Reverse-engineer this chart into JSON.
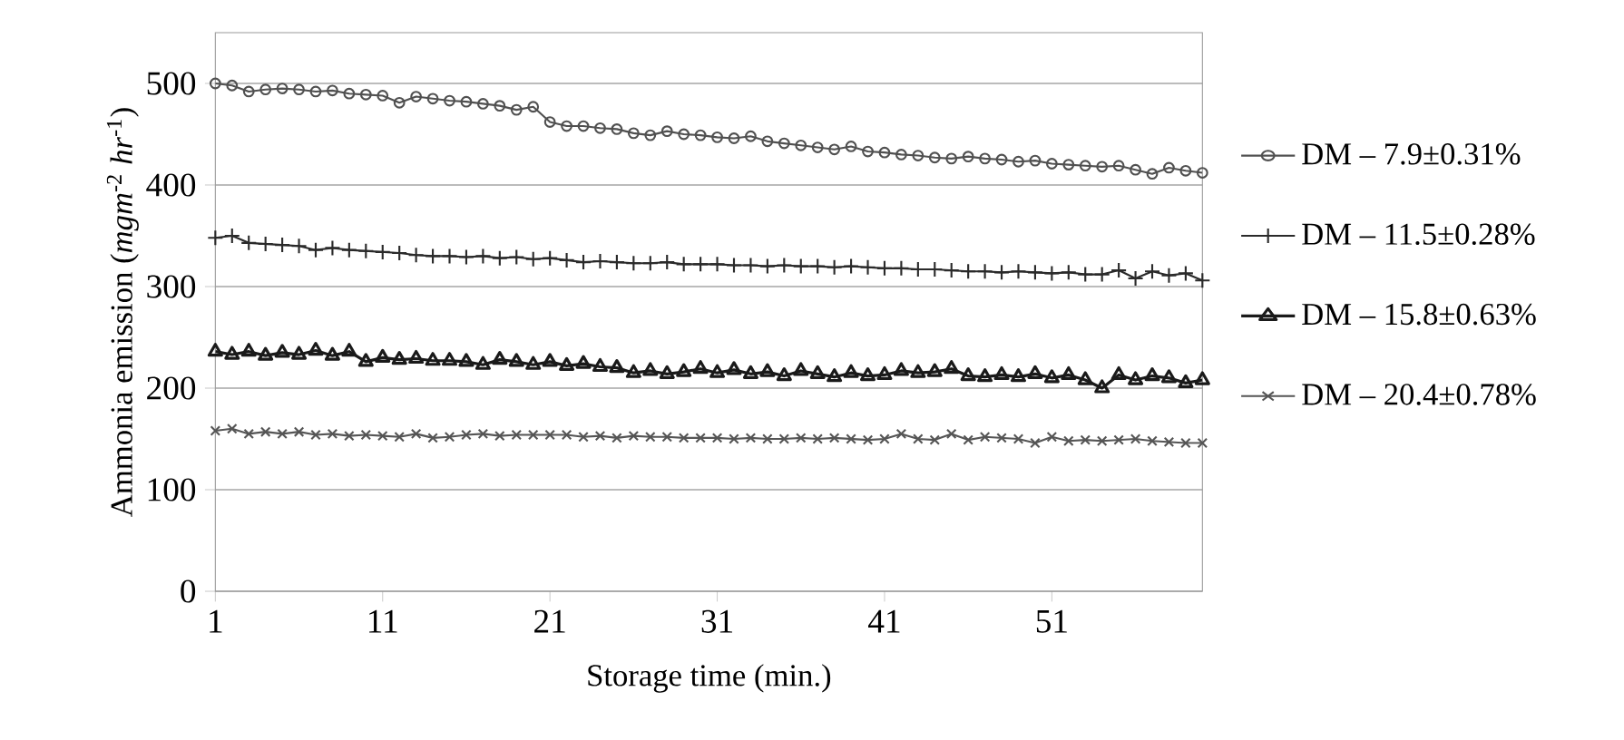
{
  "chart_data": {
    "type": "line",
    "xlabel": "Storage time (min.)",
    "ylabel": "Ammonia emission (*mgm*$^{-2}$ *hr*$^{-1}$)",
    "x": [
      1,
      2,
      3,
      4,
      5,
      6,
      7,
      8,
      9,
      10,
      11,
      12,
      13,
      14,
      15,
      16,
      17,
      18,
      19,
      20,
      21,
      22,
      23,
      24,
      25,
      26,
      27,
      28,
      29,
      30,
      31,
      32,
      33,
      34,
      35,
      36,
      37,
      38,
      39,
      40,
      41,
      42,
      43,
      44,
      45,
      46,
      47,
      48,
      49,
      50,
      51,
      52,
      53,
      54,
      55,
      56,
      57,
      58,
      59,
      60
    ],
    "xlim": [
      1,
      60
    ],
    "xticks": [
      1,
      11,
      21,
      31,
      41,
      51
    ],
    "ylim": [
      0,
      550
    ],
    "yticks": [
      0,
      100,
      200,
      300,
      400,
      500
    ],
    "grid": "y",
    "legend": "right",
    "series": [
      {
        "name": "DM – 7.9±0.31%",
        "color": "#505050",
        "marker": "circle",
        "values": [
          500,
          498,
          492,
          494,
          495,
          494,
          492,
          493,
          490,
          489,
          488,
          481,
          487,
          485,
          483,
          482,
          480,
          478,
          474,
          477,
          462,
          458,
          458,
          456,
          455,
          451,
          449,
          453,
          450,
          449,
          447,
          446,
          448,
          443,
          441,
          439,
          437,
          435,
          438,
          433,
          432,
          430,
          429,
          427,
          426,
          428,
          426,
          425,
          423,
          424,
          421,
          420,
          419,
          418,
          419,
          415,
          411,
          417,
          414,
          412
        ]
      },
      {
        "name": "DM – 11.5±0.28%",
        "color": "#2a2a2a",
        "marker": "plus",
        "values": [
          348,
          350,
          343,
          342,
          341,
          340,
          336,
          338,
          336,
          335,
          334,
          333,
          331,
          330,
          330,
          329,
          330,
          328,
          329,
          327,
          328,
          326,
          324,
          325,
          324,
          323,
          323,
          324,
          322,
          322,
          322,
          321,
          321,
          320,
          321,
          320,
          320,
          319,
          320,
          319,
          318,
          318,
          317,
          317,
          316,
          315,
          315,
          314,
          315,
          314,
          313,
          314,
          312,
          312,
          316,
          308,
          315,
          311,
          313,
          306
        ]
      },
      {
        "name": "DM – 15.8±0.63%",
        "color": "#1a1a1a",
        "marker": "triangle",
        "values": [
          236,
          233,
          236,
          232,
          235,
          233,
          237,
          232,
          236,
          226,
          230,
          228,
          229,
          227,
          227,
          226,
          223,
          228,
          226,
          223,
          226,
          222,
          224,
          221,
          220,
          215,
          217,
          214,
          216,
          219,
          215,
          218,
          214,
          216,
          212,
          217,
          214,
          211,
          215,
          212,
          213,
          217,
          215,
          216,
          219,
          212,
          211,
          213,
          211,
          214,
          210,
          213,
          208,
          200,
          213,
          208,
          212,
          210,
          205,
          208
        ]
      },
      {
        "name": "DM – 20.4±0.78%",
        "color": "#555555",
        "marker": "cross",
        "values": [
          158,
          160,
          155,
          157,
          155,
          157,
          154,
          155,
          153,
          154,
          153,
          152,
          155,
          151,
          152,
          154,
          155,
          153,
          154,
          154,
          154,
          154,
          152,
          153,
          151,
          153,
          152,
          152,
          151,
          151,
          151,
          150,
          151,
          150,
          150,
          151,
          150,
          151,
          150,
          149,
          150,
          155,
          150,
          149,
          155,
          149,
          152,
          151,
          150,
          146,
          152,
          148,
          149,
          148,
          149,
          150,
          148,
          147,
          146,
          146
        ]
      }
    ]
  }
}
